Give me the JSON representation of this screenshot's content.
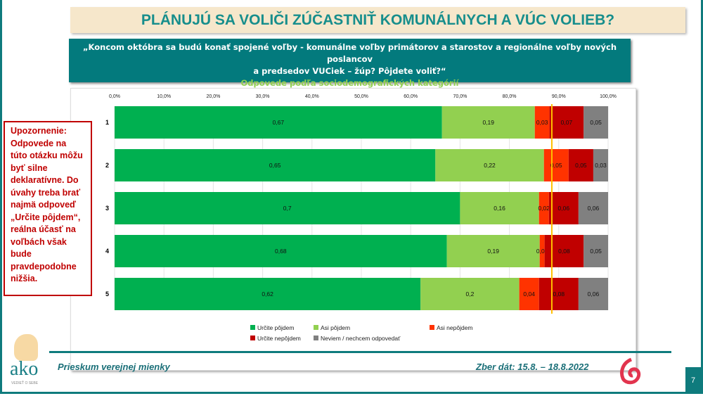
{
  "title": "PLÁNUJÚ SA VOLIČI ZÚČASTNIŤ KOMUNÁLNYCH A VÚC VOLIEB?",
  "question": {
    "line1": "„Koncom októbra sa budú konať spojené voľby - komunálne voľby primátorov a starostov a regionálne voľby nových poslancov",
    "line2": "a predsedov VUCiek – žúp? Pôjdete voliť?“",
    "subtitle": "Odpovede podľa sociodemografických kategórií"
  },
  "warning": "Upozornenie: Odpovede na túto otázku môžu byť silne deklaratívne. Do úvahy treba brať najmä odpoveď „Určite pôjdem“, reálna účasť na voľbách však bude pravdepodobne nižšia.",
  "footer": {
    "left": "Prieskum verejnej mienky",
    "right": "Zber dát: 15.8. – 18.8.2022",
    "page": "7",
    "logo_text": "ako",
    "logo_tagline": "VEDIEŤ O SEBE"
  },
  "chart_data": {
    "type": "bar",
    "orientation": "horizontal",
    "stacked": true,
    "categories": [
      "1",
      "2",
      "3",
      "4",
      "5"
    ],
    "xticks": [
      "0,0%",
      "10,0%",
      "20,0%",
      "30,0%",
      "40,0%",
      "50,0%",
      "60,0%",
      "70,0%",
      "80,0%",
      "90,0%",
      "100,0%"
    ],
    "xlim": [
      0,
      100
    ],
    "grid": true,
    "legend_position": "bottom",
    "reference_line_x": 88.6,
    "reference_line_color": "#ffc000",
    "series": [
      {
        "name": "Určite pôjdem",
        "color": "#00b050",
        "values": [
          0.67,
          0.65,
          0.7,
          0.68,
          0.62
        ],
        "labels": [
          "0,67",
          "0,65",
          "0,7",
          "0,68",
          "0,62"
        ]
      },
      {
        "name": "Asi pôjdem",
        "color": "#92d050",
        "values": [
          0.19,
          0.22,
          0.16,
          0.19,
          0.2
        ],
        "labels": [
          "0,19",
          "0,22",
          "0,16",
          "0,19",
          "0,2"
        ]
      },
      {
        "name": "Asi nepôjdem",
        "color": "#ff3300",
        "values": [
          0.03,
          0.05,
          0.02,
          0.01,
          0.04
        ],
        "labels": [
          "0,03",
          "0,05",
          "0,02",
          "0,01",
          "0,04"
        ]
      },
      {
        "name": "Určite nepôjdem",
        "color": "#c00000",
        "values": [
          0.07,
          0.05,
          0.06,
          0.08,
          0.08
        ],
        "labels": [
          "0,07",
          "0,05",
          "0,06",
          "0,08",
          "0,08"
        ]
      },
      {
        "name": "Neviem / nechcem odpovedať",
        "color": "#808080",
        "values": [
          0.05,
          0.03,
          0.06,
          0.05,
          0.06
        ],
        "labels": [
          "0,05",
          "0,03",
          "0,06",
          "0,05",
          "0,06"
        ]
      }
    ]
  }
}
